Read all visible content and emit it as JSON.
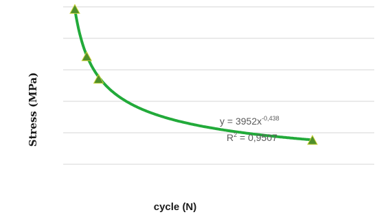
{
  "chart_data": {
    "type": "scatter",
    "xlabel": "cycle (N)",
    "ylabel": "Stress (MPa)",
    "grid": true,
    "legend": "none",
    "series": [
      {
        "marker": "triangle",
        "marker_color": "#4f8f2a",
        "trendline_color": "#22aa3a",
        "trendline": "power",
        "points": [
          {
            "x": 1,
            "y": 3952
          },
          {
            "x": 2,
            "y": 2900
          },
          {
            "x": 3,
            "y": 2400
          },
          {
            "x": 21,
            "y": 1040
          }
        ]
      }
    ],
    "annotation": {
      "equation_prefix": "y = 3952x",
      "equation_exponent": "-0,438",
      "r2_prefix": "R",
      "r2_power": "2",
      "r2_value": " = 0,9507"
    },
    "trend_a": 3952,
    "trend_b": -0.438
  }
}
